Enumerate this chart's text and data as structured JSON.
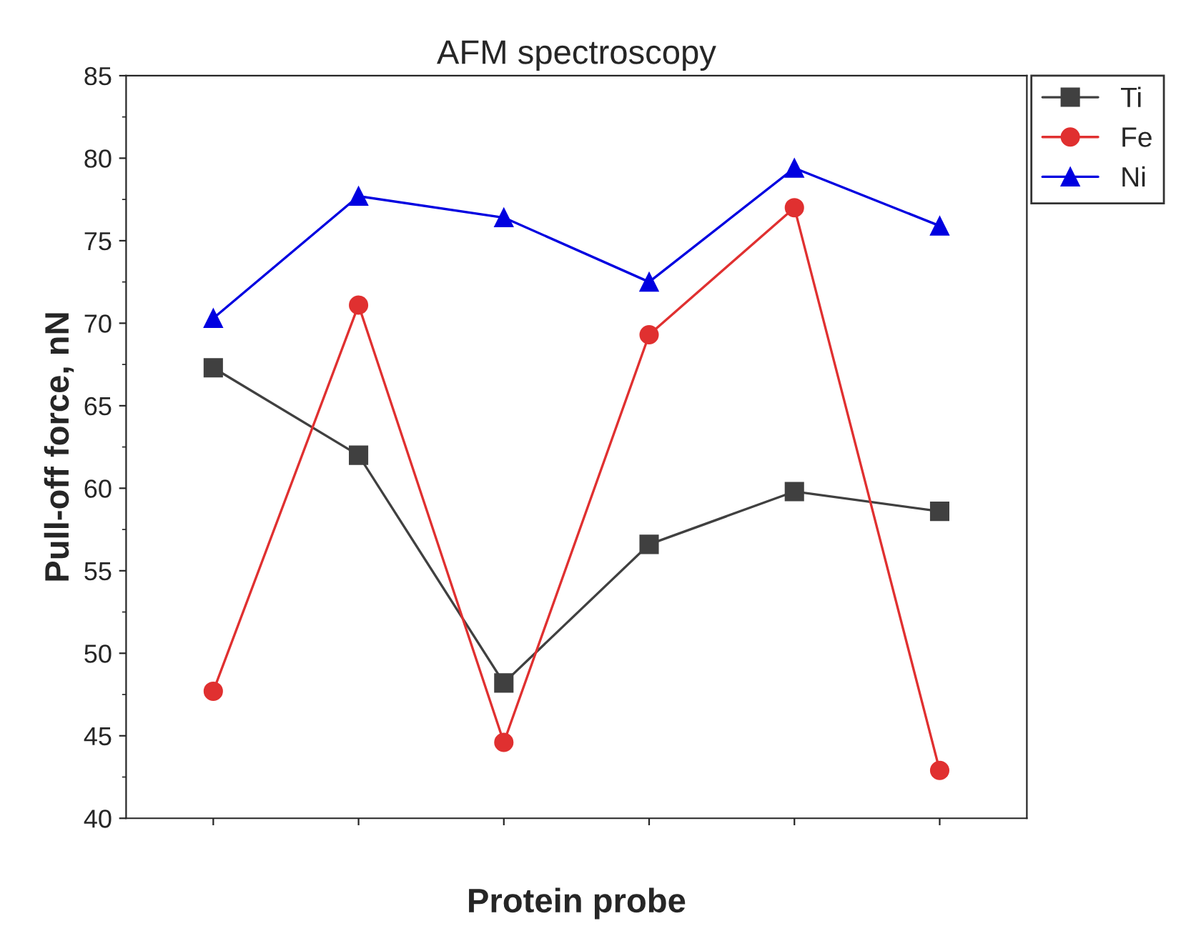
{
  "chart_data": {
    "type": "line",
    "title": "AFM spectroscopy",
    "xlabel": "Protein probe",
    "ylabel": "Pull-off force, nN",
    "categories": [
      null,
      null,
      null,
      null,
      null,
      null
    ],
    "series": [
      {
        "name": "Ti",
        "color": "#404040",
        "marker": "square",
        "values": [
          67.3,
          62.0,
          48.2,
          56.6,
          59.8,
          58.6
        ]
      },
      {
        "name": "Fe",
        "color": "#e03030",
        "marker": "circle",
        "values": [
          47.7,
          71.1,
          44.6,
          69.3,
          77.0,
          42.9
        ]
      },
      {
        "name": "Ni",
        "color": "#0000e0",
        "marker": "triangle",
        "values": [
          70.3,
          77.7,
          76.4,
          72.5,
          79.4,
          75.9
        ]
      }
    ],
    "ylim": [
      40,
      85
    ],
    "yticks": [
      40,
      45,
      50,
      55,
      60,
      65,
      70,
      75,
      80,
      85
    ],
    "grid": false,
    "legend": "top right"
  }
}
